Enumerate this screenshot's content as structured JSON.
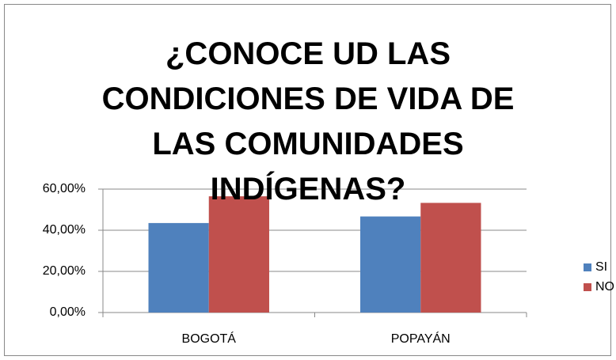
{
  "chart_data": {
    "type": "bar",
    "title": "¿CONOCE UD LAS CONDICIONES DE VIDA DE LAS COMUNIDADES INDÍGENAS?",
    "categories": [
      "BOGOTÁ",
      "POPAYÁN"
    ],
    "series": [
      {
        "name": "SI",
        "color": "#4f81bd",
        "values": [
          43.5,
          46.7
        ]
      },
      {
        "name": "NO",
        "color": "#c0504d",
        "values": [
          56.5,
          53.3
        ]
      }
    ],
    "ylim": [
      0,
      60
    ],
    "yticks": [
      {
        "value": 0,
        "label": "0,00%"
      },
      {
        "value": 20,
        "label": "20,00%"
      },
      {
        "value": 40,
        "label": "40,00%"
      },
      {
        "value": 60,
        "label": "60,00%"
      }
    ],
    "grid": true,
    "legend": "right"
  }
}
